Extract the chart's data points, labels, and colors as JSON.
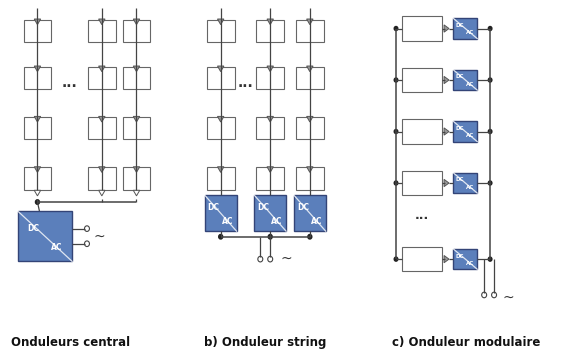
{
  "labels": [
    "Onduleurs central",
    "b) Onduleur string",
    "c) Onduleur modulaire"
  ],
  "bg_color": "#ffffff",
  "box_edge": "#666666",
  "inv_face": "#5b7fbb",
  "inv_edge": "#334477",
  "diode_face": "#999999",
  "diode_edge": "#555555",
  "line_color": "#444444",
  "dot_color": "#222222",
  "label_fontsize": 8.5,
  "inv_label_fontsize": 5.5,
  "small_inv_label_fontsize": 4.0
}
